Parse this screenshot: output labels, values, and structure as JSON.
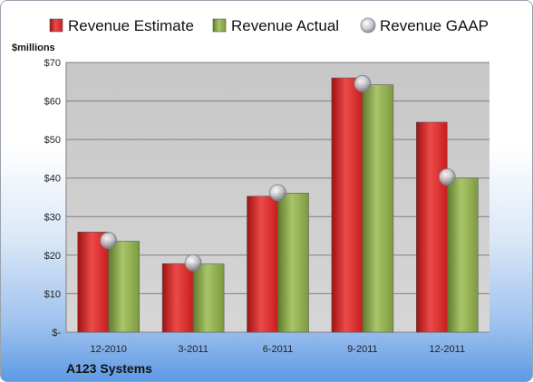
{
  "chart_data": {
    "type": "bar",
    "categories": [
      "12-2010",
      "3-2011",
      "6-2011",
      "9-2011",
      "12-2011"
    ],
    "series": [
      {
        "name": "Revenue Estimate",
        "values": [
          26.0,
          17.8,
          35.3,
          66.0,
          54.5
        ],
        "color": "#d21e1e"
      },
      {
        "name": "Revenue Actual",
        "values": [
          23.6,
          17.7,
          36.1,
          64.2,
          40.0
        ],
        "color": "#88a84a"
      }
    ],
    "markers": {
      "name": "Revenue GAAP",
      "values": [
        23.8,
        18.0,
        36.2,
        64.5,
        40.3
      ],
      "color": "#b9bcc2"
    },
    "ylabel": "$millions",
    "ylim": [
      0,
      70
    ],
    "yticks": [
      0,
      10,
      20,
      30,
      40,
      50,
      60,
      70
    ],
    "ytick_labels": [
      "$-",
      "$10",
      "$20",
      "$30",
      "$40",
      "$50",
      "$60",
      "$70"
    ],
    "grid": true,
    "legend_position": "top"
  },
  "footer": {
    "company": "A123 Systems"
  }
}
